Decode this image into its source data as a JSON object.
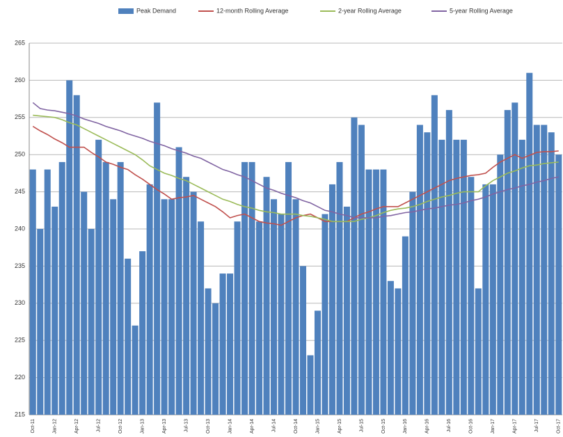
{
  "chart_data": {
    "type": "bar",
    "categories": [
      "Oct-11",
      null,
      null,
      "Jan-12",
      null,
      null,
      "Apr-12",
      null,
      null,
      "Jul-12",
      null,
      null,
      "Oct-12",
      null,
      null,
      "Jan-13",
      null,
      null,
      "Apr-13",
      null,
      null,
      "Jul-13",
      null,
      null,
      "Oct-13",
      null,
      null,
      "Jan-14",
      null,
      null,
      "Apr-14",
      null,
      null,
      "Jul-14",
      null,
      null,
      "Oct-14",
      null,
      null,
      "Jan-15",
      null,
      null,
      "Apr-15",
      null,
      null,
      "Jul-15",
      null,
      null,
      "Oct-15",
      null,
      null,
      "Jan-16",
      null,
      null,
      "Apr-16",
      null,
      null,
      "Jul-16",
      null,
      null,
      "Oct-16",
      null,
      null,
      "Jan-17",
      null,
      null,
      "Apr-17",
      null,
      null,
      "Jul-17",
      null,
      null,
      "Oct-17"
    ],
    "series": [
      {
        "name": "Peak Demand",
        "type": "bar",
        "color": "#4f81bd",
        "values": [
          248,
          240,
          248,
          243,
          249,
          260,
          258,
          245,
          240,
          252,
          249,
          244,
          249,
          236,
          227,
          237,
          246,
          257,
          244,
          244,
          251,
          247,
          245,
          241,
          232,
          230,
          234,
          234,
          241,
          249,
          249,
          241,
          247,
          244,
          242,
          249,
          244,
          235,
          223,
          229,
          242,
          246,
          249,
          243,
          255,
          254,
          248,
          248,
          248,
          233,
          232,
          239,
          245,
          254,
          253,
          258,
          252,
          256,
          252,
          252,
          247,
          232,
          246,
          246,
          250,
          256,
          257,
          252,
          261,
          254,
          254,
          253,
          250
        ]
      },
      {
        "name": "12-month Rolling Average",
        "type": "line",
        "color": "#c0504d",
        "values": [
          253.8,
          253.2,
          252.7,
          252.1,
          251.6,
          251,
          251,
          251,
          250.3,
          249.7,
          249,
          248.7,
          248.3,
          248,
          247.3,
          246.7,
          246,
          245.3,
          244.7,
          244,
          244.2,
          244.3,
          244.5,
          244,
          243.5,
          243,
          242.3,
          241.5,
          241.8,
          242,
          241.5,
          241,
          240.8,
          240.7,
          240.5,
          241,
          241.5,
          241.8,
          242,
          241.5,
          241,
          241,
          241,
          241,
          241.5,
          242,
          242.3,
          242.7,
          243,
          243,
          243,
          243.5,
          244,
          244.5,
          245,
          245.5,
          246,
          246.5,
          246.8,
          247,
          247.2,
          247.3,
          247.5,
          248.3,
          249,
          249.5,
          250,
          249.5,
          249.9,
          250.3,
          250.4,
          250.4,
          250.5
        ]
      },
      {
        "name": "2-year Rolling Average",
        "type": "line",
        "color": "#9bbb59",
        "values": [
          255.3,
          255.2,
          255.1,
          255,
          254.7,
          254.3,
          254,
          253.5,
          253,
          252.5,
          252,
          251.5,
          251,
          250.5,
          250,
          249.3,
          248.5,
          248,
          247.5,
          247.2,
          246.8,
          246.5,
          246,
          245.5,
          245,
          244.5,
          244,
          243.7,
          243.3,
          243,
          242.8,
          242.5,
          242.3,
          242.2,
          242,
          242,
          242,
          241.8,
          241.7,
          241.5,
          241.3,
          241,
          241,
          241,
          241,
          241.3,
          241.5,
          241.8,
          242.2,
          242.5,
          242.7,
          242.8,
          243,
          243.3,
          243.7,
          244,
          244.3,
          244.5,
          244.8,
          245,
          245,
          245,
          245.8,
          246.5,
          247,
          247.5,
          247.8,
          248.2,
          248.5,
          248.6,
          248.8,
          248.9,
          249
        ]
      },
      {
        "name": "5-year Rolling Average",
        "type": "line",
        "color": "#8064a2",
        "values": [
          257,
          256.2,
          256,
          255.9,
          255.7,
          255.5,
          255.2,
          254.8,
          254.5,
          254.2,
          253.8,
          253.5,
          253.2,
          252.8,
          252.5,
          252.2,
          251.8,
          251.5,
          251.2,
          250.8,
          250.5,
          250.2,
          249.8,
          249.5,
          249,
          248.5,
          248,
          247.7,
          247.3,
          247,
          246.5,
          246,
          245.5,
          245.2,
          244.8,
          244.5,
          244.2,
          243.8,
          243.5,
          243,
          242.5,
          242.3,
          242,
          241.8,
          241.5,
          241.5,
          241.5,
          241.5,
          241.7,
          241.8,
          242,
          242.2,
          242.3,
          242.5,
          242.7,
          242.8,
          243,
          243.2,
          243.3,
          243.5,
          243.8,
          244,
          244.3,
          244.7,
          245,
          245.3,
          245.5,
          245.8,
          246,
          246.3,
          246.5,
          246.8,
          247
        ]
      }
    ],
    "ylim": [
      215,
      265
    ],
    "yticks": [
      215,
      220,
      225,
      230,
      235,
      240,
      245,
      250,
      255,
      260,
      265
    ],
    "grid": true,
    "legend": "top"
  }
}
